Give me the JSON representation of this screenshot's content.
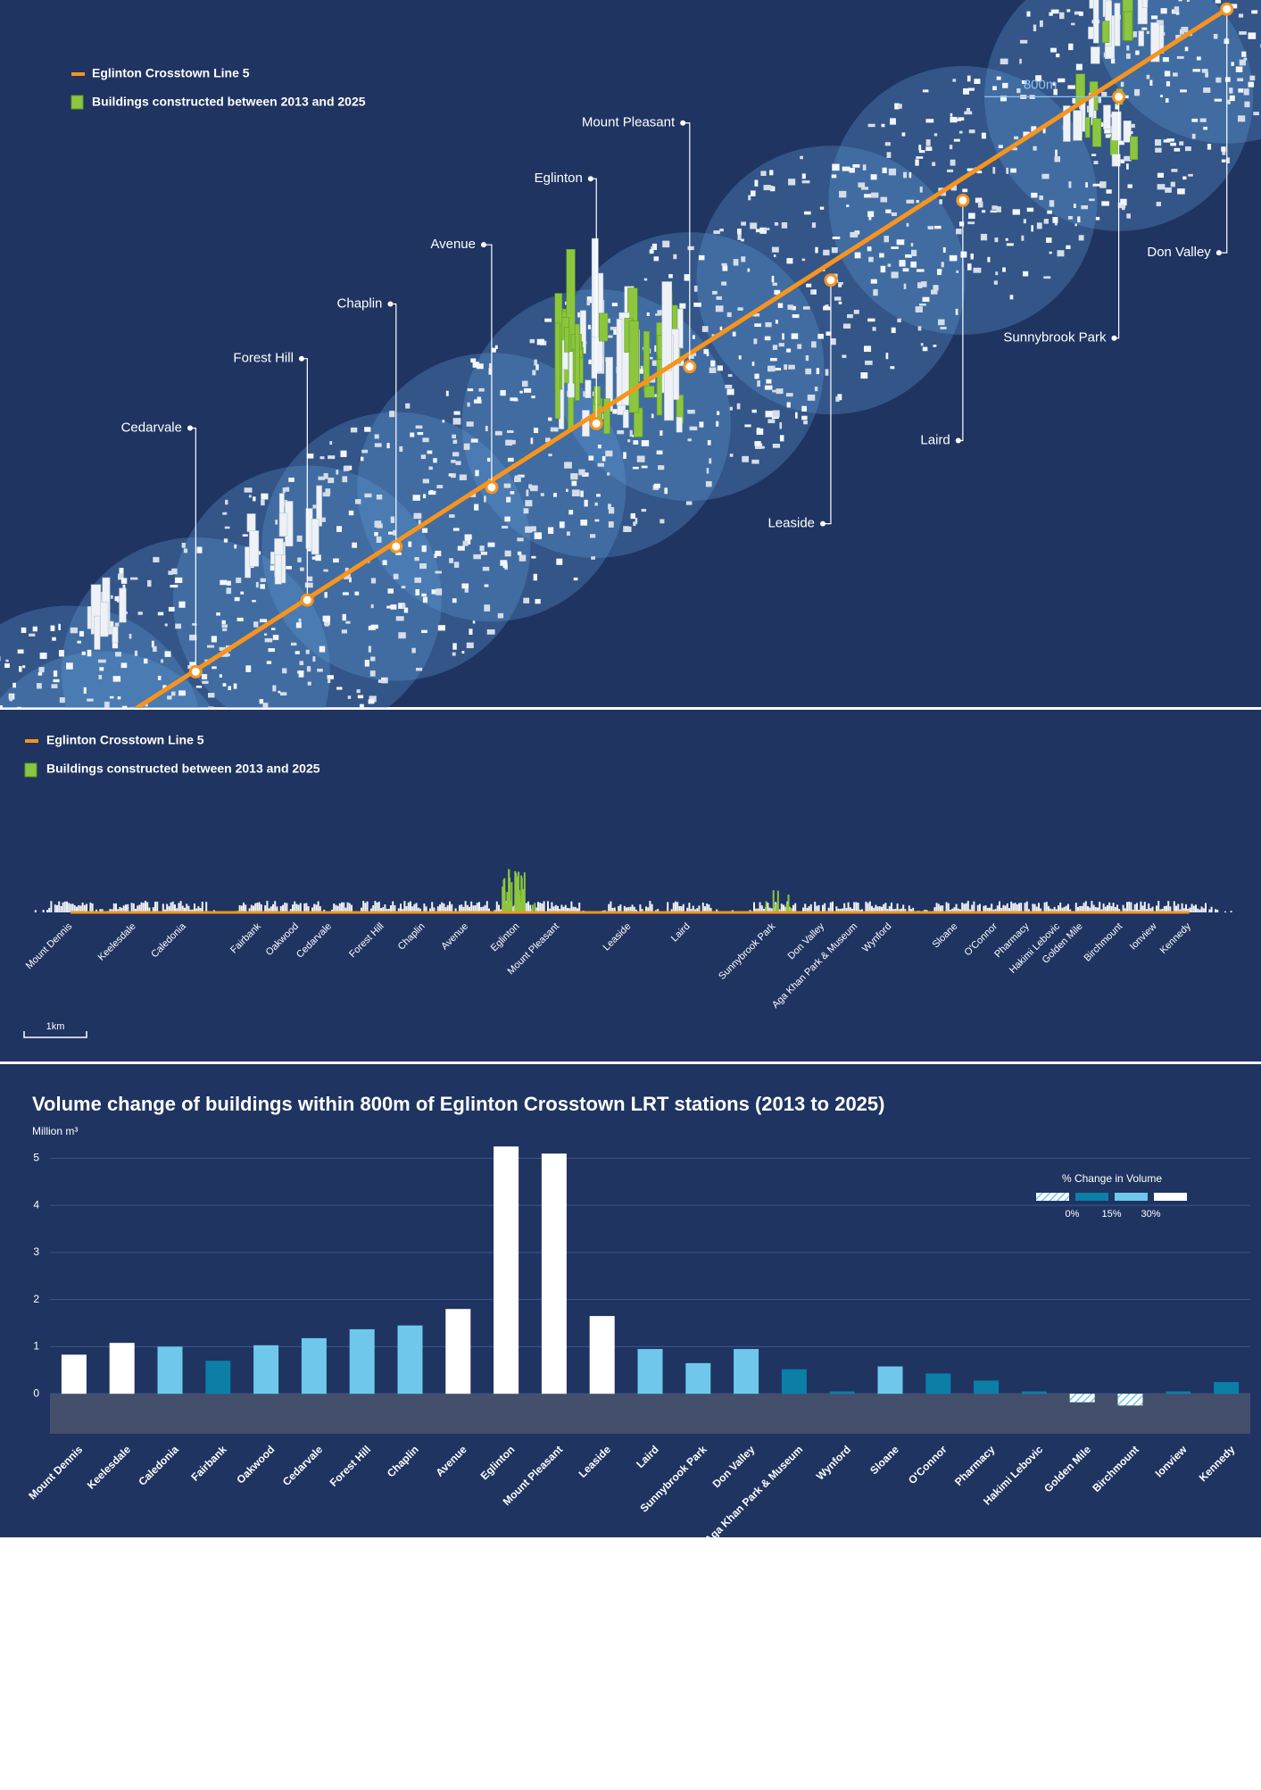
{
  "map": {
    "legend": {
      "line": "Eglinton Crosstown Line 5",
      "buildings": "Buildings constructed between 2013 and 2025"
    },
    "radius_label": "800m",
    "stations": [
      "Cedarvale",
      "Forest Hill",
      "Chaplin",
      "Avenue",
      "Eglinton",
      "Mount Pleasant",
      "Leaside",
      "Laird",
      "Sunnybrook Park",
      "Don Valley"
    ]
  },
  "strip": {
    "legend": {
      "line": "Eglinton Crosstown Line 5",
      "buildings": "Buildings constructed between 2013 and 2025"
    },
    "stations": [
      "Mount Dennis",
      "Keelesdale",
      "Caledonia",
      "Fairbank",
      "Oakwood",
      "Cedarvale",
      "Forest Hill",
      "Chaplin",
      "Avenue",
      "Eglinton",
      "Mount Pleasant",
      "Leaside",
      "Laird",
      "Sunnybrook Park",
      "Don Valley",
      "Aga Khan Park & Museum",
      "Wynford",
      "Sloane",
      "O'Connor",
      "Pharmacy",
      "Hakimi Lebovic",
      "Golden Mile",
      "Birchmount",
      "Ionview",
      "Kennedy"
    ],
    "scale_label": "1km"
  },
  "chart_data": {
    "type": "bar",
    "title": "Volume change of buildings within 800m of Eglinton Crosstown LRT stations (2013 to 2025)",
    "y_label": "Million m³",
    "categories": [
      "Mount Dennis",
      "Keelesdale",
      "Caledonia",
      "Fairbank",
      "Oakwood",
      "Cedarvale",
      "Forest Hill",
      "Chaplin",
      "Avenue",
      "Eglinton",
      "Mount Pleasant",
      "Leaside",
      "Laird",
      "Sunnybrook Park",
      "Don Valley",
      "Aga Khan Park & Museum",
      "Wynford",
      "Sloane",
      "O'Connor",
      "Pharmacy",
      "Hakimi Lebovic",
      "Golden Mile",
      "Birchmount",
      "Ionview",
      "Kennedy"
    ],
    "values": [
      0.83,
      1.08,
      1.0,
      0.7,
      1.03,
      1.18,
      1.37,
      1.45,
      1.8,
      5.25,
      5.1,
      1.65,
      0.95,
      0.65,
      0.95,
      0.52,
      0.05,
      0.58,
      0.43,
      0.28,
      0.05,
      -0.18,
      -0.25,
      0.05,
      0.25
    ],
    "colors": [
      "#ffffff",
      "#ffffff",
      "#6fc8ec",
      "#0b7fa6",
      "#6fc8ec",
      "#6fc8ec",
      "#6fc8ec",
      "#6fc8ec",
      "#ffffff",
      "#ffffff",
      "#ffffff",
      "#ffffff",
      "#6fc8ec",
      "#6fc8ec",
      "#6fc8ec",
      "#0b7fa6",
      "#0b7fa6",
      "#6fc8ec",
      "#0b7fa6",
      "#0b7fa6",
      "#0b7fa6",
      "hatch",
      "hatch",
      "#0b7fa6",
      "#0b7fa6"
    ],
    "ylim": [
      -0.85,
      5.5
    ],
    "yticks": [
      0,
      1,
      2,
      3,
      4,
      5
    ],
    "grid": true,
    "legend": {
      "title": "% Change in Volume",
      "position": "top-right",
      "colors": [
        "hatch",
        "#0b7fa6",
        "#6fc8ec",
        "#ffffff"
      ],
      "labels": [
        "0%",
        "15%",
        "30%"
      ]
    }
  }
}
